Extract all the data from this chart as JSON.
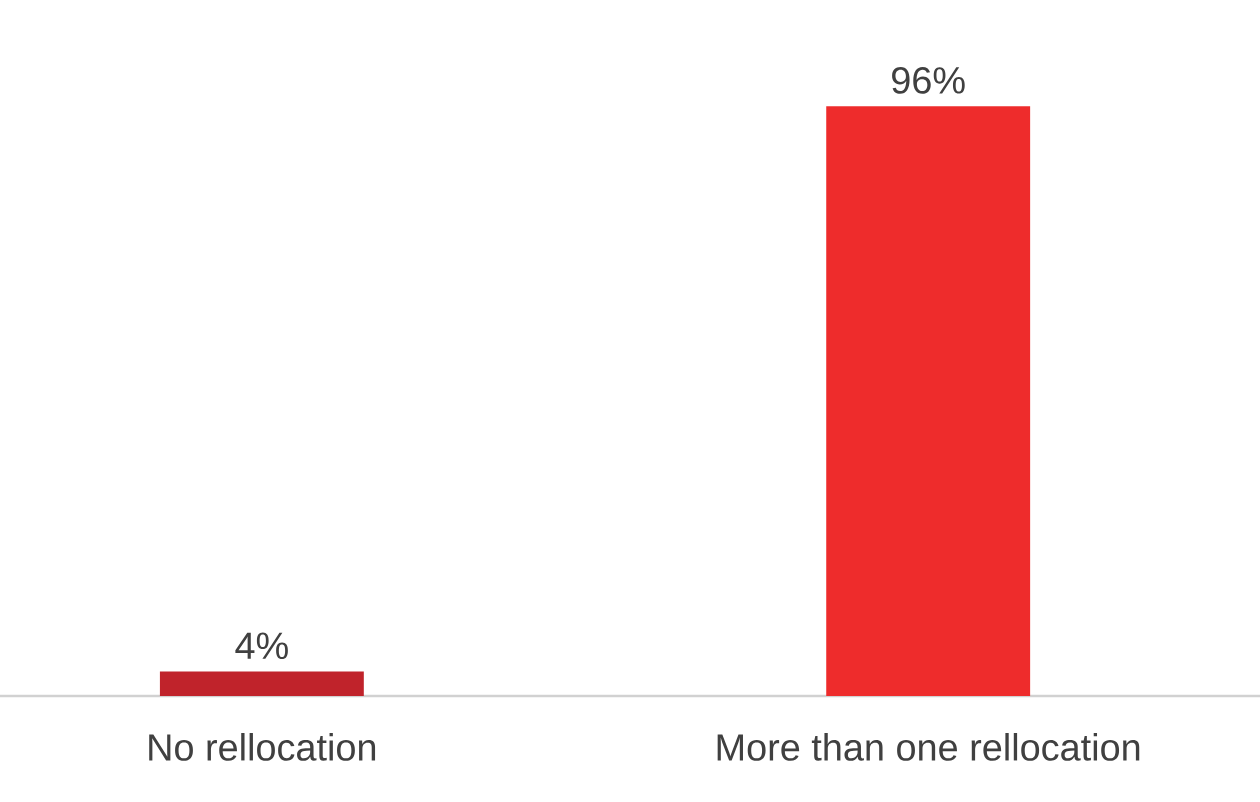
{
  "chart_data": {
    "type": "bar",
    "categories": [
      "No rellocation",
      "More than one rellocation"
    ],
    "values": [
      4,
      96
    ],
    "colors": [
      "#c0232b",
      "#ee2c2c"
    ],
    "value_labels": [
      "4%",
      "96%"
    ]
  }
}
